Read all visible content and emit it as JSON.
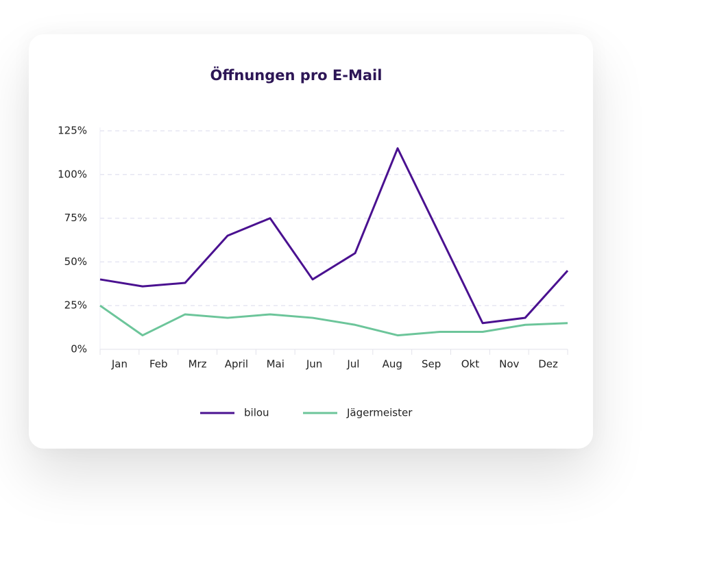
{
  "chart_data": {
    "type": "line",
    "title": "Öffnungen pro E-Mail",
    "categories": [
      "Jan",
      "Feb",
      "Mrz",
      "April",
      "Mai",
      "Jun",
      "Jul",
      "Aug",
      "Sep",
      "Okt",
      "Nov",
      "Dez"
    ],
    "series": [
      {
        "name": "bilou",
        "color": "#4a1190",
        "values": [
          40,
          36,
          38,
          65,
          75,
          40,
          55,
          115,
          65,
          15,
          18,
          45
        ]
      },
      {
        "name": "Jägermeister",
        "color": "#6cc59a",
        "values": [
          25,
          8,
          20,
          18,
          20,
          18,
          14,
          8,
          10,
          10,
          14,
          15
        ]
      }
    ],
    "ylim": [
      0,
      125
    ],
    "yticks": [
      {
        "value": 0,
        "label": "0%"
      },
      {
        "value": 25,
        "label": "25%"
      },
      {
        "value": 50,
        "label": "50%"
      },
      {
        "value": 75,
        "label": "75%"
      },
      {
        "value": 100,
        "label": "100%"
      },
      {
        "value": 125,
        "label": "125%"
      }
    ],
    "grid": true
  }
}
